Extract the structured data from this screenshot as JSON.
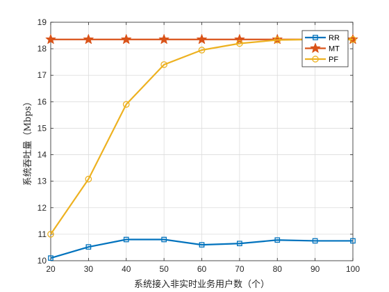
{
  "chart_data": {
    "type": "line",
    "xlabel": "系统接入非实时业务用户数（个）",
    "ylabel": "系统吞吐量（Mbps）",
    "xlim": [
      20,
      100
    ],
    "ylim": [
      10,
      19
    ],
    "xticks": [
      "20",
      "30",
      "40",
      "50",
      "60",
      "70",
      "80",
      "90",
      "100"
    ],
    "yticks": [
      "10",
      "11",
      "12",
      "13",
      "14",
      "15",
      "16",
      "17",
      "18",
      "19"
    ],
    "grid": true,
    "legend_position": "top-right",
    "x": [
      20,
      30,
      40,
      50,
      60,
      70,
      80,
      90,
      100
    ],
    "series": [
      {
        "name": "RR",
        "color": "#0072BD",
        "marker": "square",
        "values": [
          10.1,
          10.52,
          10.8,
          10.8,
          10.6,
          10.65,
          10.78,
          10.75,
          10.75
        ]
      },
      {
        "name": "MT",
        "color": "#D95319",
        "marker": "star",
        "values": [
          18.35,
          18.35,
          18.35,
          18.35,
          18.35,
          18.35,
          18.35,
          18.35,
          18.35
        ]
      },
      {
        "name": "PF",
        "color": "#EDB120",
        "marker": "circle",
        "values": [
          11.0,
          13.08,
          15.9,
          17.4,
          17.95,
          18.2,
          18.33,
          18.35,
          18.35
        ]
      }
    ]
  }
}
